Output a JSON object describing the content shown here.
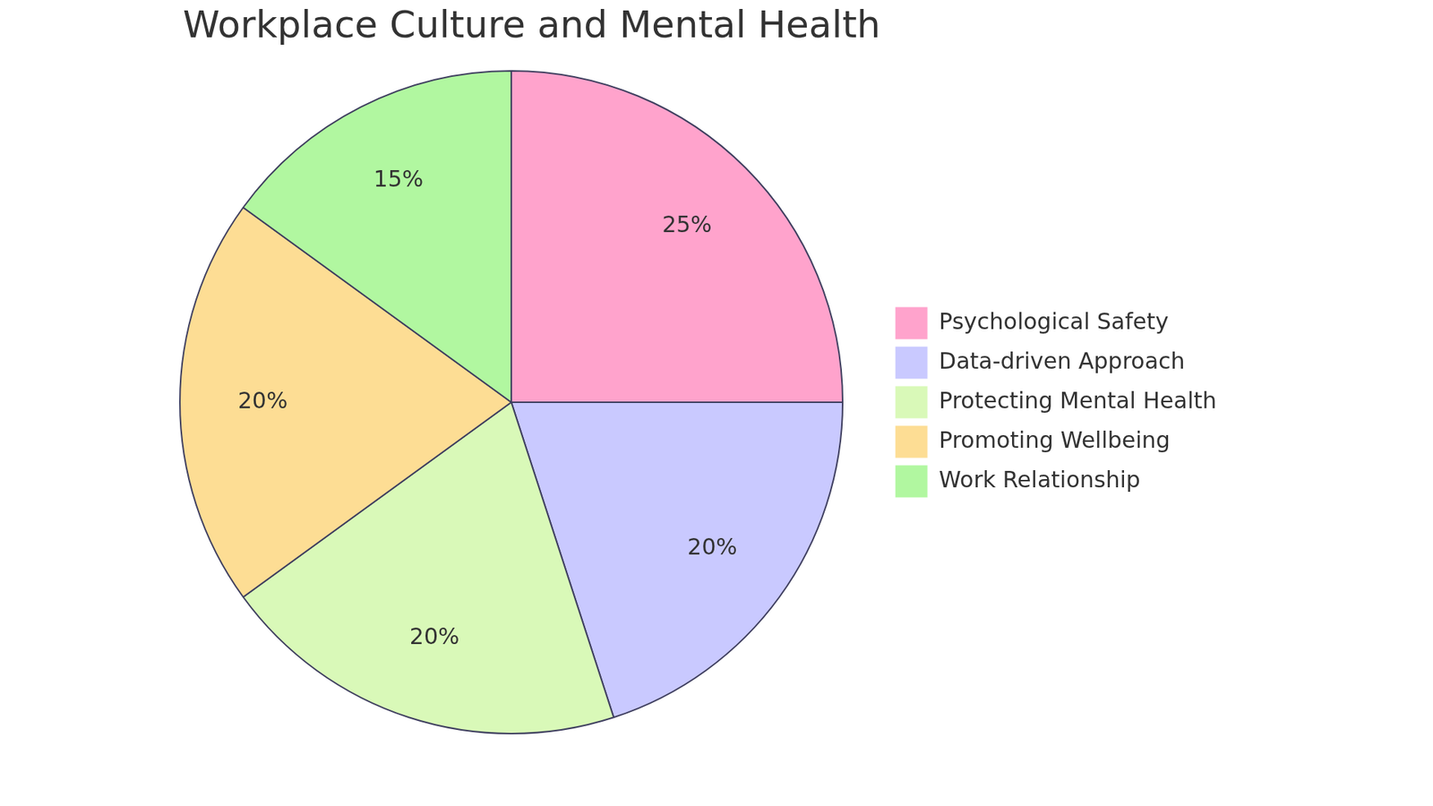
{
  "chart_data": {
    "type": "pie",
    "title": "Workplace Culture and Mental Health",
    "categories": [
      "Psychological Safety",
      "Data-driven Approach",
      "Protecting Mental Health",
      "Promoting Wellbeing",
      "Work Relationship"
    ],
    "values": [
      25,
      20,
      20,
      20,
      15
    ],
    "value_labels": [
      "25%",
      "20%",
      "20%",
      "20%",
      "15%"
    ],
    "colors": [
      "#ffa3cc",
      "#c9c9ff",
      "#d9f9b8",
      "#fddd94",
      "#b1f7a0"
    ],
    "legend": "right",
    "data_labels": true
  }
}
